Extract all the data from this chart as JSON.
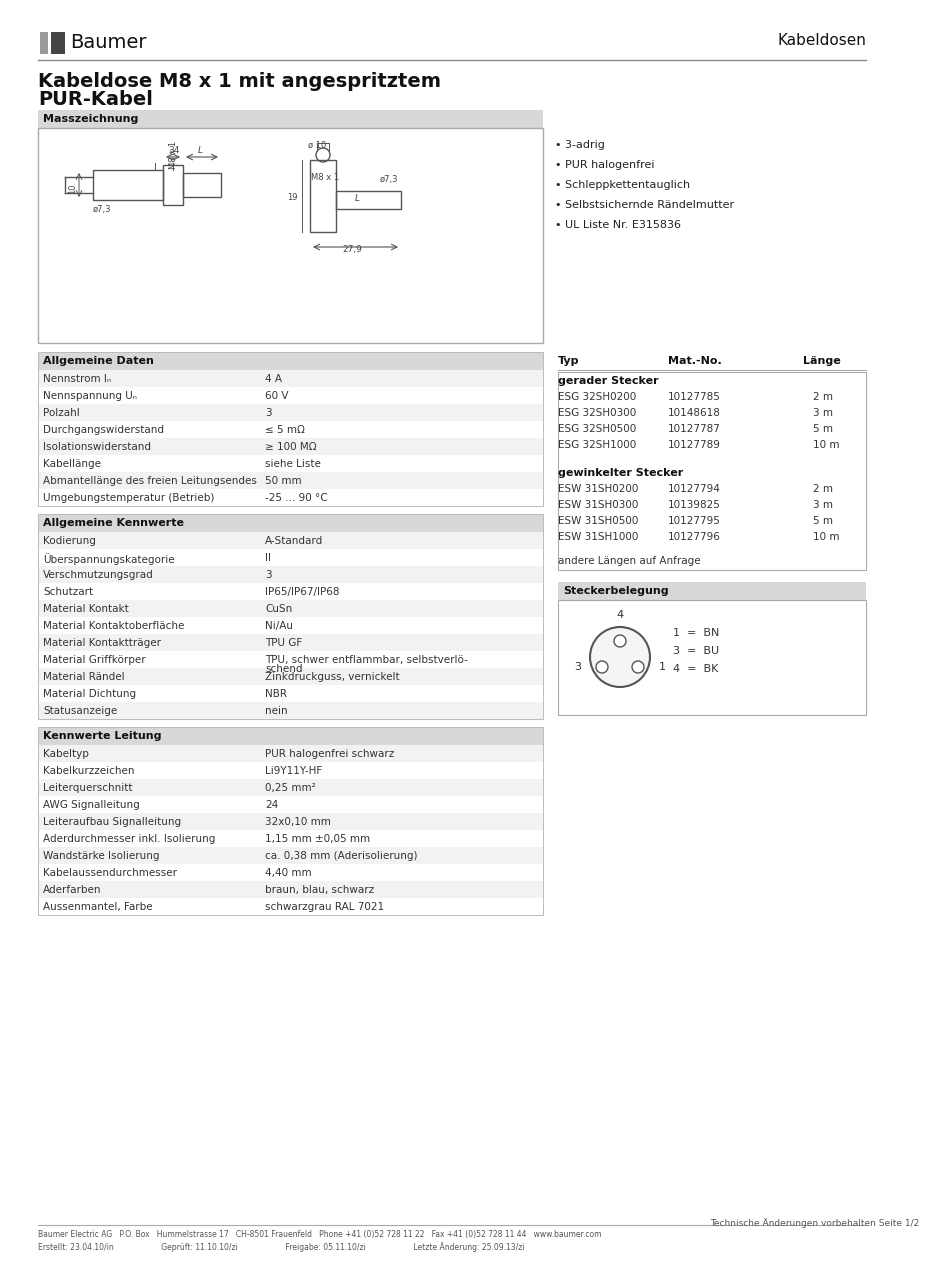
{
  "page_bg": "#ffffff",
  "title_line1": "Kabeldose M8 x 1 mit angespritztem",
  "title_line2": "PUR-Kabel",
  "brand": "Baumer",
  "category": "Kabeldosen",
  "section_masszeichnung": "Masszeichnung",
  "bullet_points": [
    "3-adrig",
    "PUR halogenfrei",
    "Schleppkettentauglich",
    "Selbstsichernde Rändelmutter",
    "UL Liste Nr. E315836"
  ],
  "allgemeine_daten_title": "Allgemeine Daten",
  "allgemeine_daten": [
    [
      "Nennstrom Iₙ",
      "4 A"
    ],
    [
      "Nennspannung Uₙ",
      "60 V"
    ],
    [
      "Polzahl",
      "3"
    ],
    [
      "Durchgangswiderstand",
      "≤ 5 mΩ"
    ],
    [
      "Isolationswiderstand",
      "≥ 100 MΩ"
    ],
    [
      "Kabellänge",
      "siehe Liste"
    ],
    [
      "Abmantellänge des freien Leitungsendes",
      "50 mm"
    ],
    [
      "Umgebungstemperatur (Betrieb)",
      "-25 ... 90 °C"
    ]
  ],
  "allgemeine_kennwerte_title": "Allgemeine Kennwerte",
  "allgemeine_kennwerte": [
    [
      "Kodierung",
      "A-Standard"
    ],
    [
      "Überspannungskategorie",
      "II"
    ],
    [
      "Verschmutzungsgrad",
      "3"
    ],
    [
      "Schutzart",
      "IP65/IP67/IP68"
    ],
    [
      "Material Kontakt",
      "CuSn"
    ],
    [
      "Material Kontaktoberfläche",
      "Ni/Au"
    ],
    [
      "Material Kontaktträger",
      "TPU GF"
    ],
    [
      "Material Griffkörper",
      "TPU, schwer entflammbar, selbstverlö-\nschend"
    ],
    [
      "Material Rändel",
      "Zinkdruckguss, vernickelt"
    ],
    [
      "Material Dichtung",
      "NBR"
    ],
    [
      "Statusanzeige",
      "nein"
    ]
  ],
  "kennwerte_leitung_title": "Kennwerte Leitung",
  "kennwerte_leitung": [
    [
      "Kabeltyp",
      "PUR halogenfrei schwarz"
    ],
    [
      "Kabelkurzzeichen",
      "Li9Y11Y-HF"
    ],
    [
      "Leiterquerschnitt",
      "0,25 mm²"
    ],
    [
      "AWG Signalleitung",
      "24"
    ],
    [
      "Leiteraufbau Signalleitung",
      "32x0,10 mm"
    ],
    [
      "Aderdurchmesser inkl. Isolierung",
      "1,15 mm ±0,05 mm"
    ],
    [
      "Wandstärke Isolierung",
      "ca. 0,38 mm (Aderisolierung)"
    ],
    [
      "Kabelaussendurchmesser",
      "4,40 mm"
    ],
    [
      "Aderfarben",
      "braun, blau, schwarz"
    ],
    [
      "Aussenmantel, Farbe",
      "schwarzgrau RAL 7021"
    ]
  ],
  "typ_table_header": [
    "Typ",
    "Mat.-No.",
    "Länge"
  ],
  "gerader_stecker_title": "gerader Stecker",
  "gerader_stecker": [
    [
      "ESG 32SH0200",
      "10127785",
      "2 m"
    ],
    [
      "ESG 32SH0300",
      "10148618",
      "3 m"
    ],
    [
      "ESG 32SH0500",
      "10127787",
      "5 m"
    ],
    [
      "ESG 32SH1000",
      "10127789",
      "10 m"
    ]
  ],
  "gewinkelter_stecker_title": "gewinkelter Stecker",
  "gewinkelter_stecker": [
    [
      "ESW 31SH0200",
      "10127794",
      "2 m"
    ],
    [
      "ESW 31SH0300",
      "10139825",
      "3 m"
    ],
    [
      "ESW 31SH0500",
      "10127795",
      "5 m"
    ],
    [
      "ESW 31SH1000",
      "10127796",
      "10 m"
    ]
  ],
  "andere_laengen": "andere Längen auf Anfrage",
  "steckerbelegung_title": "Steckerbelegung",
  "steckerbelegung_legend": [
    "1  =  BN",
    "3  =  BU",
    "4  =  BK"
  ],
  "footer_left": "Baumer Electric AG   P.O. Box   Hummelstrasse 17   CH-8501 Frauenfeld   Phone +41 (0)52 728 11 22   Fax +41 (0)52 728 11 44   www.baumer.com",
  "footer_left2": "Erstellt: 23.04.10/in                    Geprüft: 11.10.10/zi                    Freigabe: 05.11.10/zi                    Letzte Änderung: 25.09.13/zi",
  "footer_right": "Technische Änderungen vorbehalten Seite 1/2"
}
